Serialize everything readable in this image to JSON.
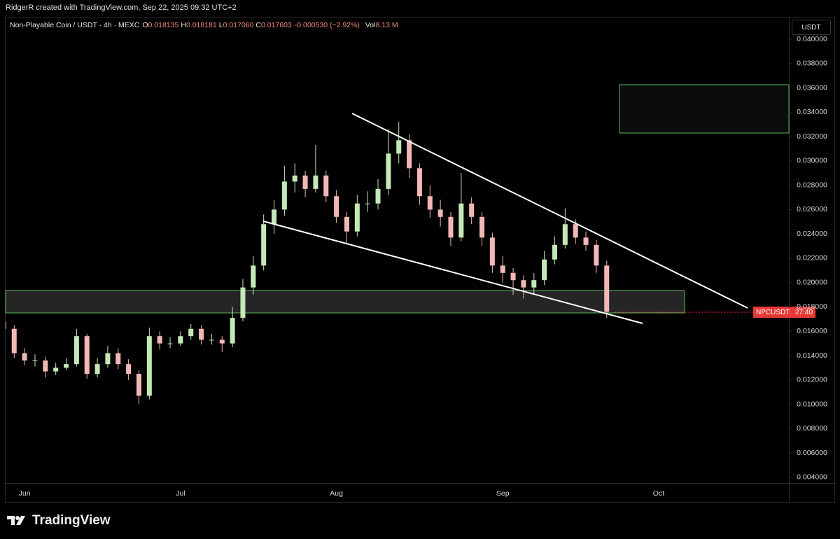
{
  "header": {
    "credit": "RidgerR created with TradingView.com, Sep 22, 2025 09:32 UTC+2"
  },
  "chart_data": {
    "type": "candlestick",
    "symbol": "Non-Playable Coin / USDT · 4h · MEXC",
    "legend": [
      {
        "label": "O",
        "value": "0.018135"
      },
      {
        "label": "H",
        "value": "0.018181"
      },
      {
        "label": "L",
        "value": "0.017060"
      },
      {
        "label": "C",
        "value": "0.017603"
      }
    ],
    "change": "-0.000530 (−2.92%)",
    "volume": {
      "label": "Vol",
      "value": "8.13 M"
    },
    "currency": "USDT",
    "price_tag": {
      "symbol": "NPCUSDT",
      "countdown": "27:40"
    },
    "categories": [
      null,
      null,
      "Jun",
      null,
      null,
      null,
      null,
      null,
      null,
      null,
      null,
      null,
      null,
      null,
      null,
      null,
      null,
      "Jul",
      null,
      null,
      null,
      null,
      null,
      null,
      null,
      null,
      null,
      null,
      null,
      null,
      null,
      null,
      "Aug",
      null,
      null,
      null,
      null,
      null,
      null,
      null,
      null,
      null,
      null,
      null,
      null,
      null,
      null,
      null,
      "Sep",
      null,
      null,
      null,
      null,
      null,
      null,
      null,
      null,
      null,
      null,
      null,
      null,
      null,
      null,
      "Oct"
    ],
    "open": [
      0.0168,
      0.0162,
      0.0142,
      0.0136,
      0.0136,
      0.0127,
      0.013,
      0.0133,
      0.0156,
      0.0125,
      0.0133,
      0.0142,
      0.0133,
      0.0125,
      0.0107,
      0.0156,
      0.015,
      0.015,
      0.0156,
      0.0162,
      0.0153,
      0.0153,
      0.015,
      0.0171,
      0.0196,
      0.0214,
      0.0248,
      0.026,
      0.0283,
      0.0288,
      0.0277,
      0.0288,
      0.0271,
      0.0254,
      0.0242,
      0.0265,
      0.0265,
      0.0277,
      0.0306,
      0.0317,
      0.0294,
      0.0271,
      0.026,
      0.0254,
      0.0237,
      0.0265,
      0.0254,
      0.0237,
      0.0214,
      0.0208,
      0.0202,
      0.0196,
      0.0202,
      0.0219,
      0.0231,
      0.0248,
      0.0237,
      0.0231,
      0.0214,
      null,
      null,
      null,
      null,
      null
    ],
    "high": [
      0.0172,
      0.0165,
      0.0146,
      0.0141,
      0.0139,
      0.0134,
      0.0138,
      0.0162,
      0.0158,
      0.0138,
      0.0148,
      0.0146,
      0.0137,
      0.0128,
      0.0163,
      0.016,
      0.0155,
      0.016,
      0.0166,
      0.0165,
      0.0158,
      0.0156,
      0.018,
      0.0203,
      0.0222,
      0.0256,
      0.0268,
      0.0296,
      0.0298,
      0.0292,
      0.0313,
      0.0292,
      0.0276,
      0.0258,
      0.0272,
      0.0275,
      0.0285,
      0.0326,
      0.0332,
      0.0322,
      0.0298,
      0.028,
      0.0268,
      0.0258,
      0.029,
      0.027,
      0.0258,
      0.0241,
      0.0222,
      0.0212,
      0.0206,
      0.0208,
      0.0226,
      0.0238,
      0.0261,
      0.0252,
      0.0242,
      0.0235,
      0.0218,
      null,
      null,
      null,
      null,
      null
    ],
    "low": [
      0.0158,
      0.0138,
      0.0132,
      0.0131,
      0.0122,
      0.0124,
      0.0128,
      0.0131,
      0.0121,
      0.0122,
      0.013,
      0.0129,
      0.012,
      0.01,
      0.0104,
      0.0145,
      0.0146,
      0.0148,
      0.0153,
      0.0149,
      0.0149,
      0.0143,
      0.0147,
      0.0168,
      0.019,
      0.021,
      0.024,
      0.0255,
      0.0274,
      0.027,
      0.0274,
      0.0266,
      0.0249,
      0.0232,
      0.0238,
      0.0258,
      0.026,
      0.0272,
      0.0298,
      0.0286,
      0.0264,
      0.0253,
      0.0246,
      0.023,
      0.0234,
      0.0248,
      0.023,
      0.0208,
      0.02,
      0.019,
      0.0187,
      0.019,
      0.0198,
      0.0215,
      0.0228,
      0.0232,
      0.0226,
      0.0208,
      0.0171,
      null,
      null,
      null,
      null,
      null
    ],
    "close": [
      0.0162,
      0.0142,
      0.0136,
      0.0136,
      0.0127,
      0.013,
      0.0133,
      0.0156,
      0.0125,
      0.0133,
      0.0142,
      0.0133,
      0.0125,
      0.0107,
      0.0156,
      0.015,
      0.015,
      0.0156,
      0.0162,
      0.0153,
      0.0153,
      0.015,
      0.0171,
      0.0196,
      0.0214,
      0.0248,
      0.026,
      0.0283,
      0.0288,
      0.0277,
      0.0288,
      0.0271,
      0.0254,
      0.0242,
      0.0265,
      0.0265,
      0.0277,
      0.0306,
      0.0317,
      0.0294,
      0.0271,
      0.026,
      0.0254,
      0.0237,
      0.0265,
      0.0254,
      0.0237,
      0.0214,
      0.0208,
      0.0202,
      0.0196,
      0.0202,
      0.0219,
      0.0231,
      0.0248,
      0.0237,
      0.0231,
      0.0214,
      0.0176,
      null,
      null,
      null,
      null,
      null
    ],
    "up_color": "#c5e8b7",
    "down_color": "#f2b8b5",
    "ylim": [
      0.00353,
      0.04167
    ],
    "yticks": [
      {
        "value": 0.004,
        "label": "0.004000"
      },
      {
        "value": 0.006,
        "label": "0.006000"
      },
      {
        "value": 0.008,
        "label": "0.008000"
      },
      {
        "value": 0.01,
        "label": "0.010000"
      },
      {
        "value": 0.012,
        "label": "0.012000"
      },
      {
        "value": 0.014,
        "label": "0.014000"
      },
      {
        "value": 0.016,
        "label": "0.016000"
      },
      {
        "value": 0.018,
        "label": "0.018000"
      },
      {
        "value": 0.02,
        "label": "0.020000"
      },
      {
        "value": 0.022,
        "label": "0.022000"
      },
      {
        "value": 0.024,
        "label": "0.024000"
      },
      {
        "value": 0.026,
        "label": "0.026000"
      },
      {
        "value": 0.028,
        "label": "0.028000"
      },
      {
        "value": 0.03,
        "label": "0.030000"
      },
      {
        "value": 0.032,
        "label": "0.032000"
      },
      {
        "value": 0.034,
        "label": "0.034000"
      },
      {
        "value": 0.036,
        "label": "0.036000"
      },
      {
        "value": 0.038,
        "label": "0.038000"
      },
      {
        "value": 0.04,
        "label": "0.040000"
      }
    ],
    "grid": false
  },
  "footer": {
    "brand": "TradingView"
  }
}
